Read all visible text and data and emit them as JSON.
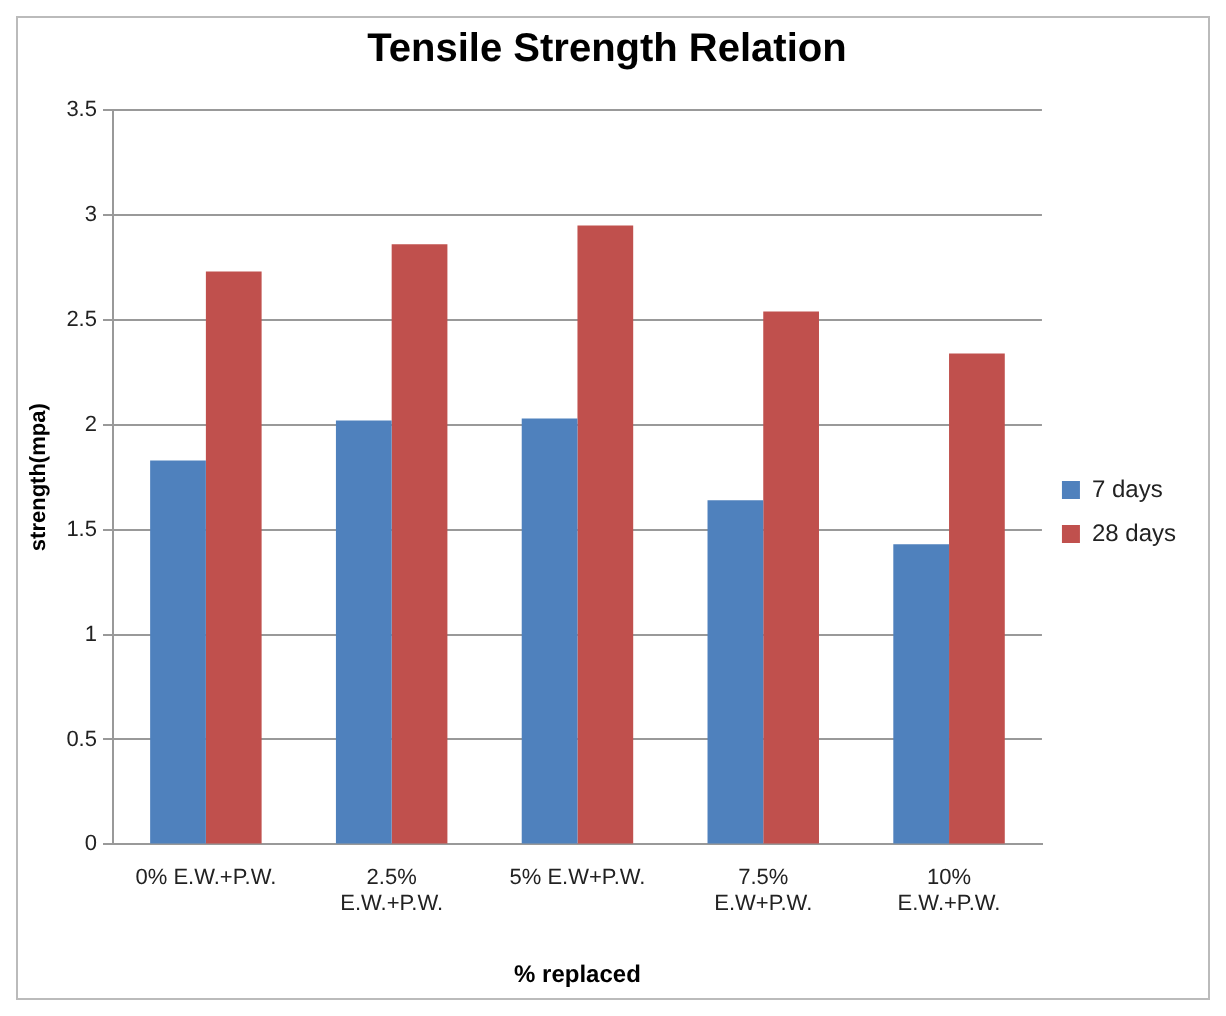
{
  "chart_data": {
    "type": "bar",
    "title": "Tensile Strength Relation",
    "xlabel": "% replaced",
    "ylabel": "strength(mpa)",
    "categories": [
      "0% E.W.+P.W.",
      "2.5% E.W.+P.W.",
      "5% E.W+P.W.",
      "7.5% E.W+P.W.",
      "10% E.W.+P.W."
    ],
    "series": [
      {
        "name": "7 days",
        "color": "#4f81bd",
        "values": [
          1.83,
          2.02,
          2.03,
          1.64,
          1.43
        ]
      },
      {
        "name": "28 days",
        "color": "#c0504d",
        "values": [
          2.73,
          2.86,
          2.95,
          2.54,
          2.34
        ]
      }
    ],
    "ylim": [
      0,
      3.5
    ],
    "yticks": [
      0,
      0.5,
      1,
      1.5,
      2,
      2.5,
      3,
      3.5
    ],
    "grid": "y",
    "legend": "right"
  }
}
